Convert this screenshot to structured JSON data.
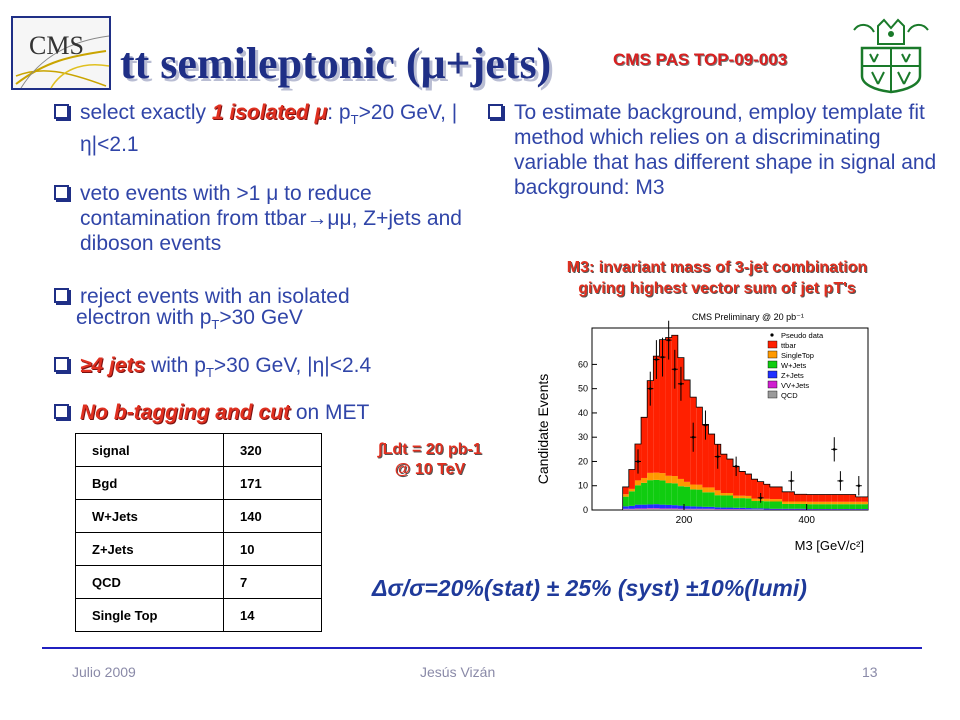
{
  "title": "tt semileptonic (μ+jets)",
  "pas_ref": "CMS PAS TOP-09-003",
  "logos": {
    "left_text": "CMS",
    "left_icon": "cms-logo-icon",
    "right_icon": "university-crest-icon"
  },
  "bullets_left": [
    {
      "pre": "select exactly ",
      "highlight": "1 isolated μ",
      "post": ": p",
      "sub": "T",
      "post2": ">20 GeV, |η|<2.1"
    },
    {
      "text": " veto events with >1 μ to reduce contamination from ttbar→μμ, Z+jets and diboson events"
    },
    {
      "text1": " reject events with an isolated",
      "text2": "electron with p",
      "sub": "T",
      "text3": ">30 GeV"
    },
    {
      "pre": " ",
      "highlight": "≥4 jets",
      "post": " with p",
      "sub": "T",
      "post2": ">30 GeV, |η|<2.4"
    },
    {
      "pre": " ",
      "highlight": "No b-tagging and cut",
      "post": " on MET"
    }
  ],
  "bullet_right": "To estimate background, employ template fit method which relies on a discriminating variable that has different shape in signal and background: M3",
  "m3_note": [
    "M3: invariant mass of 3-jet combination",
    "giving highest vector sum of jet pT's"
  ],
  "lumi_note": [
    "∫Ldt  = 20 pb-1",
    "@ 10 TeV"
  ],
  "yields_table": [
    {
      "label": "signal",
      "value": "320"
    },
    {
      "label": "Bgd",
      "value": "171"
    },
    {
      "label": "W+Jets",
      "value": "140"
    },
    {
      "label": "Z+Jets",
      "value": "10"
    },
    {
      "label": "QCD",
      "value": "7"
    },
    {
      "label": "Single Top",
      "value": "14"
    }
  ],
  "uncertainty": "Δσ/σ=20%(stat) ± 25% (syst) ±10%(lumi)",
  "chart_data": {
    "type": "bar",
    "title": "CMS Preliminary @ 20 pb⁻¹",
    "xlabel": "M3 [GeV/c²]",
    "ylabel": "Candidate Events",
    "xlim": [
      50,
      500
    ],
    "ylim": [
      0,
      75
    ],
    "xticks": [
      "200",
      "400"
    ],
    "yticks": [
      "0",
      "10",
      "20",
      "30",
      "40",
      "50",
      "60"
    ],
    "legend_position": "top-right",
    "legend": [
      "Pseudo data",
      "ttbar",
      "SingleTop",
      "W+Jets",
      "Z+Jets",
      "VV+Jets",
      "QCD"
    ],
    "colors": {
      "ttbar": "#ff2000",
      "SingleTop": "#ff9900",
      "W+Jets": "#10cc10",
      "Z+Jets": "#2030ff",
      "VV+Jets": "#d01fd0",
      "QCD": "#9a9a9a"
    },
    "bin_width": 10,
    "bins": [
      100,
      110,
      120,
      130,
      140,
      150,
      160,
      170,
      180,
      190,
      200,
      210,
      220,
      230,
      240,
      250,
      260,
      270,
      280,
      290,
      300,
      310,
      320,
      330,
      340,
      350,
      360,
      370,
      380,
      390,
      400,
      410,
      420,
      430,
      440,
      450,
      460,
      470,
      480,
      490
    ],
    "series": [
      {
        "name": "QCD",
        "values": [
          0.3,
          0.3,
          0.4,
          0.4,
          0.5,
          0.5,
          0.4,
          0.4,
          0.4,
          0.3,
          0.3,
          0.3,
          0.3,
          0.3,
          0.3,
          0.2,
          0.2,
          0.2,
          0.2,
          0.2,
          0.2,
          0.2,
          0.2,
          0.1,
          0.1,
          0.1,
          0.1,
          0.1,
          0.1,
          0.1,
          0.1,
          0.1,
          0.1,
          0.1,
          0.1,
          0.1,
          0.1,
          0.1,
          0.1,
          0.1
        ]
      },
      {
        "name": "VV+Jets",
        "values": [
          0.2,
          0.2,
          0.3,
          0.3,
          0.3,
          0.3,
          0.3,
          0.3,
          0.3,
          0.3,
          0.2,
          0.2,
          0.2,
          0.2,
          0.2,
          0.2,
          0.2,
          0.2,
          0.2,
          0.2,
          0.1,
          0.1,
          0.1,
          0.1,
          0.1,
          0.1,
          0.1,
          0.1,
          0.1,
          0.1,
          0.1,
          0.1,
          0.1,
          0.1,
          0.1,
          0.1,
          0.1,
          0.1,
          0.1,
          0.1
        ]
      },
      {
        "name": "Z+Jets",
        "values": [
          1.0,
          1.2,
          1.5,
          1.5,
          1.5,
          1.6,
          1.5,
          1.4,
          1.3,
          1.2,
          1.1,
          1.0,
          0.9,
          0.8,
          0.8,
          0.7,
          0.6,
          0.6,
          0.5,
          0.5,
          0.5,
          0.4,
          0.4,
          0.4,
          0.3,
          0.3,
          0.3,
          0.3,
          0.3,
          0.3,
          0.2,
          0.2,
          0.2,
          0.2,
          0.2,
          0.2,
          0.2,
          0.2,
          0.2,
          0.2
        ]
      },
      {
        "name": "W+Jets",
        "values": [
          4,
          6,
          8,
          9,
          10,
          10,
          10,
          9,
          9,
          8,
          8,
          7,
          7,
          6,
          6,
          5,
          5,
          5,
          4,
          4,
          4,
          3,
          3,
          3,
          3,
          3,
          2,
          2,
          2,
          2,
          2,
          2,
          2,
          2,
          2,
          2,
          2,
          2,
          2,
          2
        ]
      },
      {
        "name": "SingleTop",
        "values": [
          1,
          1,
          2,
          2,
          3,
          3,
          3,
          3,
          3,
          3,
          2,
          2,
          2,
          2,
          2,
          2,
          1,
          1,
          1,
          1,
          1,
          1,
          1,
          1,
          1,
          1,
          1,
          1,
          1,
          1,
          1,
          1,
          1,
          1,
          1,
          1,
          1,
          1,
          1,
          1
        ]
      },
      {
        "name": "ttbar",
        "values": [
          3,
          8,
          15,
          25,
          38,
          48,
          55,
          57,
          58,
          50,
          42,
          36,
          32,
          26,
          22,
          19,
          16,
          14,
          12,
          10,
          9,
          8,
          7,
          6,
          5,
          5,
          4,
          4,
          3,
          3,
          3,
          3,
          3,
          3,
          3,
          3,
          3,
          3,
          2,
          2
        ]
      }
    ],
    "pseudo_data": [
      {
        "x": 125,
        "y": 20,
        "err": 5
      },
      {
        "x": 145,
        "y": 50,
        "err": 7
      },
      {
        "x": 155,
        "y": 62,
        "err": 8
      },
      {
        "x": 165,
        "y": 63,
        "err": 8
      },
      {
        "x": 175,
        "y": 70,
        "err": 8
      },
      {
        "x": 185,
        "y": 58,
        "err": 8
      },
      {
        "x": 195,
        "y": 52,
        "err": 7
      },
      {
        "x": 215,
        "y": 30,
        "err": 6
      },
      {
        "x": 235,
        "y": 35,
        "err": 6
      },
      {
        "x": 255,
        "y": 22,
        "err": 5
      },
      {
        "x": 285,
        "y": 18,
        "err": 4
      },
      {
        "x": 325,
        "y": 5,
        "err": 2
      },
      {
        "x": 375,
        "y": 12,
        "err": 4
      },
      {
        "x": 445,
        "y": 25,
        "err": 5
      },
      {
        "x": 455,
        "y": 12,
        "err": 4
      },
      {
        "x": 485,
        "y": 10,
        "err": 4
      }
    ]
  },
  "footer": {
    "date": "Julio 2009",
    "author": "Jesús Vizán",
    "page": "13"
  }
}
